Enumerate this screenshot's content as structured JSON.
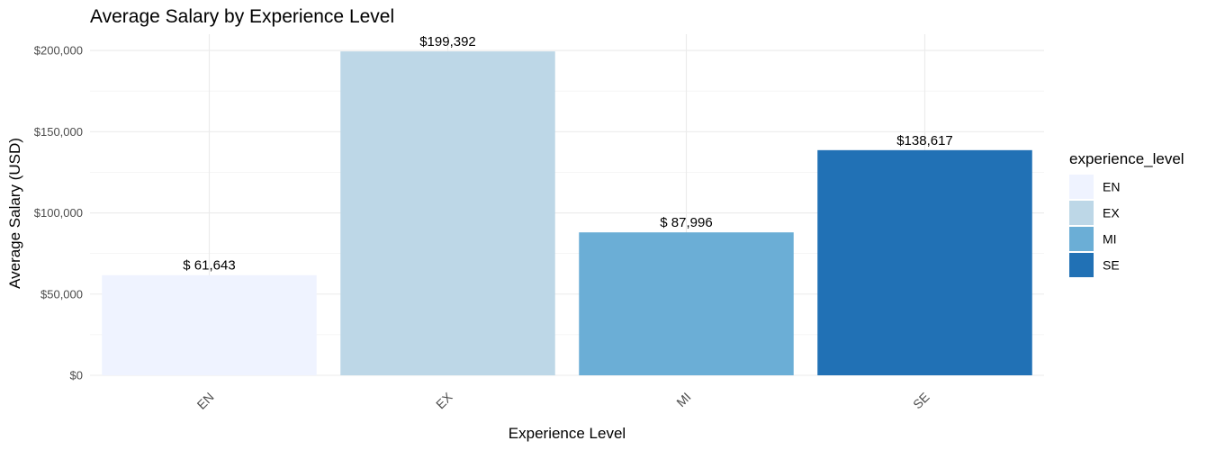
{
  "chart_data": {
    "type": "bar",
    "title": "Average Salary by Experience Level",
    "xlabel": "Experience Level",
    "ylabel": "Average Salary (USD)",
    "categories": [
      "EN",
      "EX",
      "MI",
      "SE"
    ],
    "values": [
      61643,
      199392,
      87996,
      138617
    ],
    "value_labels": [
      "$ 61,643",
      "$199,392",
      "$ 87,996",
      "$138,617"
    ],
    "colors": [
      "#eff3ff",
      "#bdd7e7",
      "#6baed6",
      "#2171b5"
    ],
    "ylim": [
      0,
      210000
    ],
    "y_ticks": [
      0,
      50000,
      100000,
      150000,
      200000
    ],
    "y_tick_labels": [
      "$0",
      "$50,000",
      "$100,000",
      "$150,000",
      "$200,000"
    ],
    "grid": true,
    "legend": {
      "title": "experience_level",
      "position": "right",
      "entries": [
        "EN",
        "EX",
        "MI",
        "SE"
      ]
    }
  }
}
